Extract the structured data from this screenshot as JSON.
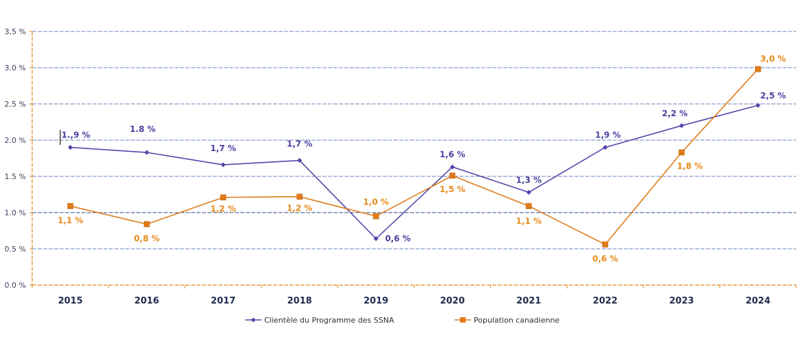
{
  "chart_data": {
    "type": "line",
    "title": "",
    "xlabel": "",
    "ylabel": "",
    "categories": [
      "2015",
      "2016",
      "2017",
      "2018",
      "2019",
      "2020",
      "2021",
      "2022",
      "2023",
      "2024"
    ],
    "ylim": [
      0,
      3.5
    ],
    "y_ticks": [
      {
        "value": 0.0,
        "label": "0.0 %"
      },
      {
        "value": 0.5,
        "label": "0.5 %"
      },
      {
        "value": 1.0,
        "label": "1.0 %"
      },
      {
        "value": 1.5,
        "label": "1.5 %"
      },
      {
        "value": 2.0,
        "label": "2.0 %"
      },
      {
        "value": 2.5,
        "label": "2.5 %"
      },
      {
        "value": 3.0,
        "label": "3.0 %"
      },
      {
        "value": 3.5,
        "label": "3,5 %"
      }
    ],
    "grid": true,
    "legend_position": "bottom",
    "series": [
      {
        "name": "Clientèle du Programme des SSNA",
        "color": "#5546a8",
        "marker": "diamond",
        "values": [
          1.9,
          1.83,
          1.66,
          1.72,
          0.64,
          1.63,
          1.28,
          1.9,
          2.2,
          2.48
        ],
        "labels": [
          "1.,9 %",
          "1.8 %",
          "1,7 %",
          "1,7 %",
          "0,6 %",
          "1,6 %",
          "1,3 %",
          "1,9 %",
          "2,2 %",
          "2,5 %"
        ]
      },
      {
        "name": "Population canadienne",
        "color": "#e07b1a",
        "marker": "square",
        "values": [
          1.09,
          0.84,
          1.21,
          1.22,
          0.95,
          1.51,
          1.09,
          0.56,
          1.83,
          2.98
        ],
        "labels": [
          "1,1 %",
          "0,8 %",
          "1,2 %",
          "1,2 %",
          "1,0 %",
          "1,5 %",
          "1,1 %",
          "0,6 %",
          "1,8 %",
          "3,0 %"
        ]
      }
    ]
  }
}
